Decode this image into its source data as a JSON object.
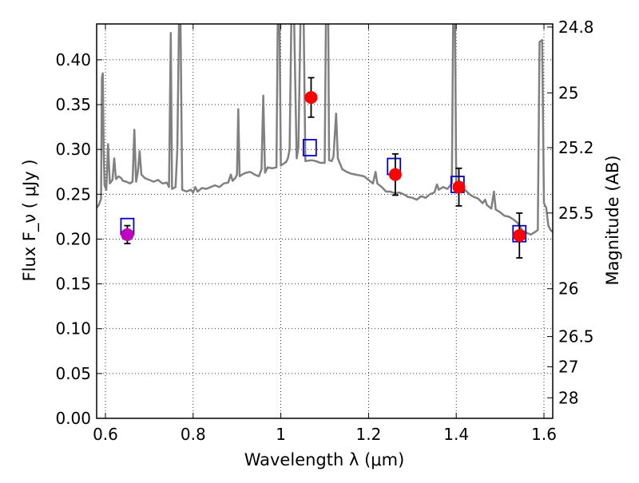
{
  "chart_data": {
    "type": "scatter",
    "xlabel": "Wavelength  λ (μm)",
    "ylabel": "Flux  F_ν  ( μJy )",
    "y2label": "Magnitude (AB)",
    "xlim": [
      0.58,
      1.62
    ],
    "ylim": [
      0.0,
      0.44
    ],
    "grid": true,
    "x_ticks": [
      {
        "value": 0.6,
        "label": "0.6"
      },
      {
        "value": 0.8,
        "label": "0.8"
      },
      {
        "value": 1.0,
        "label": "1"
      },
      {
        "value": 1.2,
        "label": "1.2"
      },
      {
        "value": 1.4,
        "label": "1.4"
      },
      {
        "value": 1.6,
        "label": "1.6"
      }
    ],
    "y_ticks": [
      {
        "value": 0.0,
        "label": "0.00"
      },
      {
        "value": 0.05,
        "label": "0.05"
      },
      {
        "value": 0.1,
        "label": "0.10"
      },
      {
        "value": 0.15,
        "label": "0.15"
      },
      {
        "value": 0.2,
        "label": "0.20"
      },
      {
        "value": 0.25,
        "label": "0.25"
      },
      {
        "value": 0.3,
        "label": "0.30"
      },
      {
        "value": 0.35,
        "label": "0.35"
      },
      {
        "value": 0.4,
        "label": "0.40"
      }
    ],
    "y2_ticks": [
      {
        "mag": 24.8,
        "label": "24.8"
      },
      {
        "mag": 25.0,
        "label": "25"
      },
      {
        "mag": 25.2,
        "label": "25.2"
      },
      {
        "mag": 25.5,
        "label": "25.5"
      },
      {
        "mag": 26.0,
        "label": "26"
      },
      {
        "mag": 26.5,
        "label": "26.5"
      },
      {
        "mag": 27.0,
        "label": "27"
      },
      {
        "mag": 28.0,
        "label": "28"
      }
    ],
    "observed": [
      {
        "x": 1.069,
        "y": 0.358,
        "yerr": 0.022,
        "color": "#ff0000"
      },
      {
        "x": 1.261,
        "y": 0.272,
        "yerr": 0.023,
        "color": "#ff0000"
      },
      {
        "x": 1.406,
        "y": 0.258,
        "yerr": 0.021,
        "color": "#ff0000"
      },
      {
        "x": 1.544,
        "y": 0.204,
        "yerr": 0.025,
        "color": "#ff0000"
      },
      {
        "x": 0.65,
        "y": 0.205,
        "yerr": 0.01,
        "color": "#bf00bf"
      }
    ],
    "model_points": [
      {
        "x": 0.65,
        "y": 0.214
      },
      {
        "x": 1.066,
        "y": 0.302
      },
      {
        "x": 1.258,
        "y": 0.281
      },
      {
        "x": 1.403,
        "y": 0.261
      },
      {
        "x": 1.544,
        "y": 0.206
      }
    ],
    "spectrum": [
      [
        0.58,
        0.235
      ],
      [
        0.585,
        0.238
      ],
      [
        0.59,
        0.245
      ],
      [
        0.592,
        0.38
      ],
      [
        0.594,
        0.385
      ],
      [
        0.596,
        0.3
      ],
      [
        0.598,
        0.26
      ],
      [
        0.602,
        0.255
      ],
      [
        0.606,
        0.306
      ],
      [
        0.61,
        0.262
      ],
      [
        0.616,
        0.266
      ],
      [
        0.62,
        0.29
      ],
      [
        0.624,
        0.267
      ],
      [
        0.63,
        0.27
      ],
      [
        0.636,
        0.268
      ],
      [
        0.64,
        0.265
      ],
      [
        0.648,
        0.264
      ],
      [
        0.656,
        0.262
      ],
      [
        0.662,
        0.264
      ],
      [
        0.666,
        0.322
      ],
      [
        0.67,
        0.264
      ],
      [
        0.674,
        0.275
      ],
      [
        0.678,
        0.298
      ],
      [
        0.682,
        0.272
      ],
      [
        0.69,
        0.268
      ],
      [
        0.7,
        0.266
      ],
      [
        0.71,
        0.264
      ],
      [
        0.72,
        0.266
      ],
      [
        0.73,
        0.262
      ],
      [
        0.74,
        0.263
      ],
      [
        0.745,
        0.258
      ],
      [
        0.749,
        0.43
      ],
      [
        0.752,
        0.256
      ],
      [
        0.76,
        0.258
      ],
      [
        0.764,
        0.3
      ],
      [
        0.768,
        0.45
      ],
      [
        0.771,
        0.45
      ],
      [
        0.775,
        0.255
      ],
      [
        0.785,
        0.253
      ],
      [
        0.795,
        0.255
      ],
      [
        0.8,
        0.252
      ],
      [
        0.805,
        0.258
      ],
      [
        0.81,
        0.253
      ],
      [
        0.82,
        0.257
      ],
      [
        0.83,
        0.256
      ],
      [
        0.84,
        0.258
      ],
      [
        0.85,
        0.26
      ],
      [
        0.86,
        0.258
      ],
      [
        0.87,
        0.262
      ],
      [
        0.88,
        0.263
      ],
      [
        0.886,
        0.272
      ],
      [
        0.89,
        0.265
      ],
      [
        0.896,
        0.268
      ],
      [
        0.9,
        0.272
      ],
      [
        0.903,
        0.345
      ],
      [
        0.906,
        0.27
      ],
      [
        0.912,
        0.272
      ],
      [
        0.92,
        0.274
      ],
      [
        0.93,
        0.275
      ],
      [
        0.94,
        0.272
      ],
      [
        0.95,
        0.27
      ],
      [
        0.956,
        0.278
      ],
      [
        0.96,
        0.36
      ],
      [
        0.964,
        0.274
      ],
      [
        0.97,
        0.28
      ],
      [
        0.98,
        0.279
      ],
      [
        0.99,
        0.28
      ],
      [
        0.993,
        0.45
      ],
      [
        0.997,
        0.45
      ],
      [
        1.0,
        0.282
      ],
      [
        1.006,
        0.284
      ],
      [
        1.012,
        0.286
      ],
      [
        1.016,
        0.29
      ],
      [
        1.02,
        0.3
      ],
      [
        1.024,
        0.45
      ],
      [
        1.03,
        0.45
      ],
      [
        1.036,
        0.29
      ],
      [
        1.04,
        0.302
      ],
      [
        1.045,
        0.45
      ],
      [
        1.052,
        0.45
      ],
      [
        1.056,
        0.287
      ],
      [
        1.07,
        0.288
      ],
      [
        1.08,
        0.287
      ],
      [
        1.09,
        0.285
      ],
      [
        1.1,
        0.285
      ],
      [
        1.103,
        0.45
      ],
      [
        1.108,
        0.45
      ],
      [
        1.11,
        0.288
      ],
      [
        1.116,
        0.287
      ],
      [
        1.12,
        0.292
      ],
      [
        1.126,
        0.34
      ],
      [
        1.13,
        0.29
      ],
      [
        1.14,
        0.278
      ],
      [
        1.15,
        0.275
      ],
      [
        1.16,
        0.273
      ],
      [
        1.17,
        0.272
      ],
      [
        1.18,
        0.271
      ],
      [
        1.19,
        0.27
      ],
      [
        1.2,
        0.266
      ],
      [
        1.21,
        0.262
      ],
      [
        1.216,
        0.275
      ],
      [
        1.22,
        0.262
      ],
      [
        1.23,
        0.258
      ],
      [
        1.24,
        0.253
      ],
      [
        1.25,
        0.253
      ],
      [
        1.26,
        0.251
      ],
      [
        1.27,
        0.252
      ],
      [
        1.28,
        0.25
      ],
      [
        1.29,
        0.247
      ],
      [
        1.3,
        0.246
      ],
      [
        1.31,
        0.244
      ],
      [
        1.32,
        0.248
      ],
      [
        1.33,
        0.246
      ],
      [
        1.34,
        0.25
      ],
      [
        1.35,
        0.252
      ],
      [
        1.356,
        0.261
      ],
      [
        1.36,
        0.255
      ],
      [
        1.37,
        0.258
      ],
      [
        1.38,
        0.256
      ],
      [
        1.39,
        0.262
      ],
      [
        1.393,
        0.45
      ],
      [
        1.397,
        0.45
      ],
      [
        1.4,
        0.26
      ],
      [
        1.41,
        0.256
      ],
      [
        1.42,
        0.255
      ],
      [
        1.43,
        0.25
      ],
      [
        1.44,
        0.247
      ],
      [
        1.45,
        0.245
      ],
      [
        1.46,
        0.24
      ],
      [
        1.466,
        0.244
      ],
      [
        1.47,
        0.238
      ],
      [
        1.48,
        0.234
      ],
      [
        1.486,
        0.253
      ],
      [
        1.49,
        0.233
      ],
      [
        1.5,
        0.23
      ],
      [
        1.51,
        0.226
      ],
      [
        1.52,
        0.225
      ],
      [
        1.53,
        0.222
      ],
      [
        1.54,
        0.218
      ],
      [
        1.55,
        0.21
      ],
      [
        1.56,
        0.207
      ],
      [
        1.57,
        0.205
      ],
      [
        1.58,
        0.208
      ],
      [
        1.586,
        0.21
      ],
      [
        1.59,
        0.42
      ],
      [
        1.596,
        0.422
      ],
      [
        1.6,
        0.24
      ],
      [
        1.605,
        0.235
      ],
      [
        1.61,
        0.215
      ],
      [
        1.615,
        0.21
      ],
      [
        1.62,
        0.208
      ]
    ],
    "colors": {
      "spectrum": "#808080",
      "model_marker": "#0000cc",
      "observed_marker": "#ff0000",
      "observed_marker_alt": "#bf00bf",
      "errorbar": "#000000",
      "grid": "#000000"
    }
  }
}
